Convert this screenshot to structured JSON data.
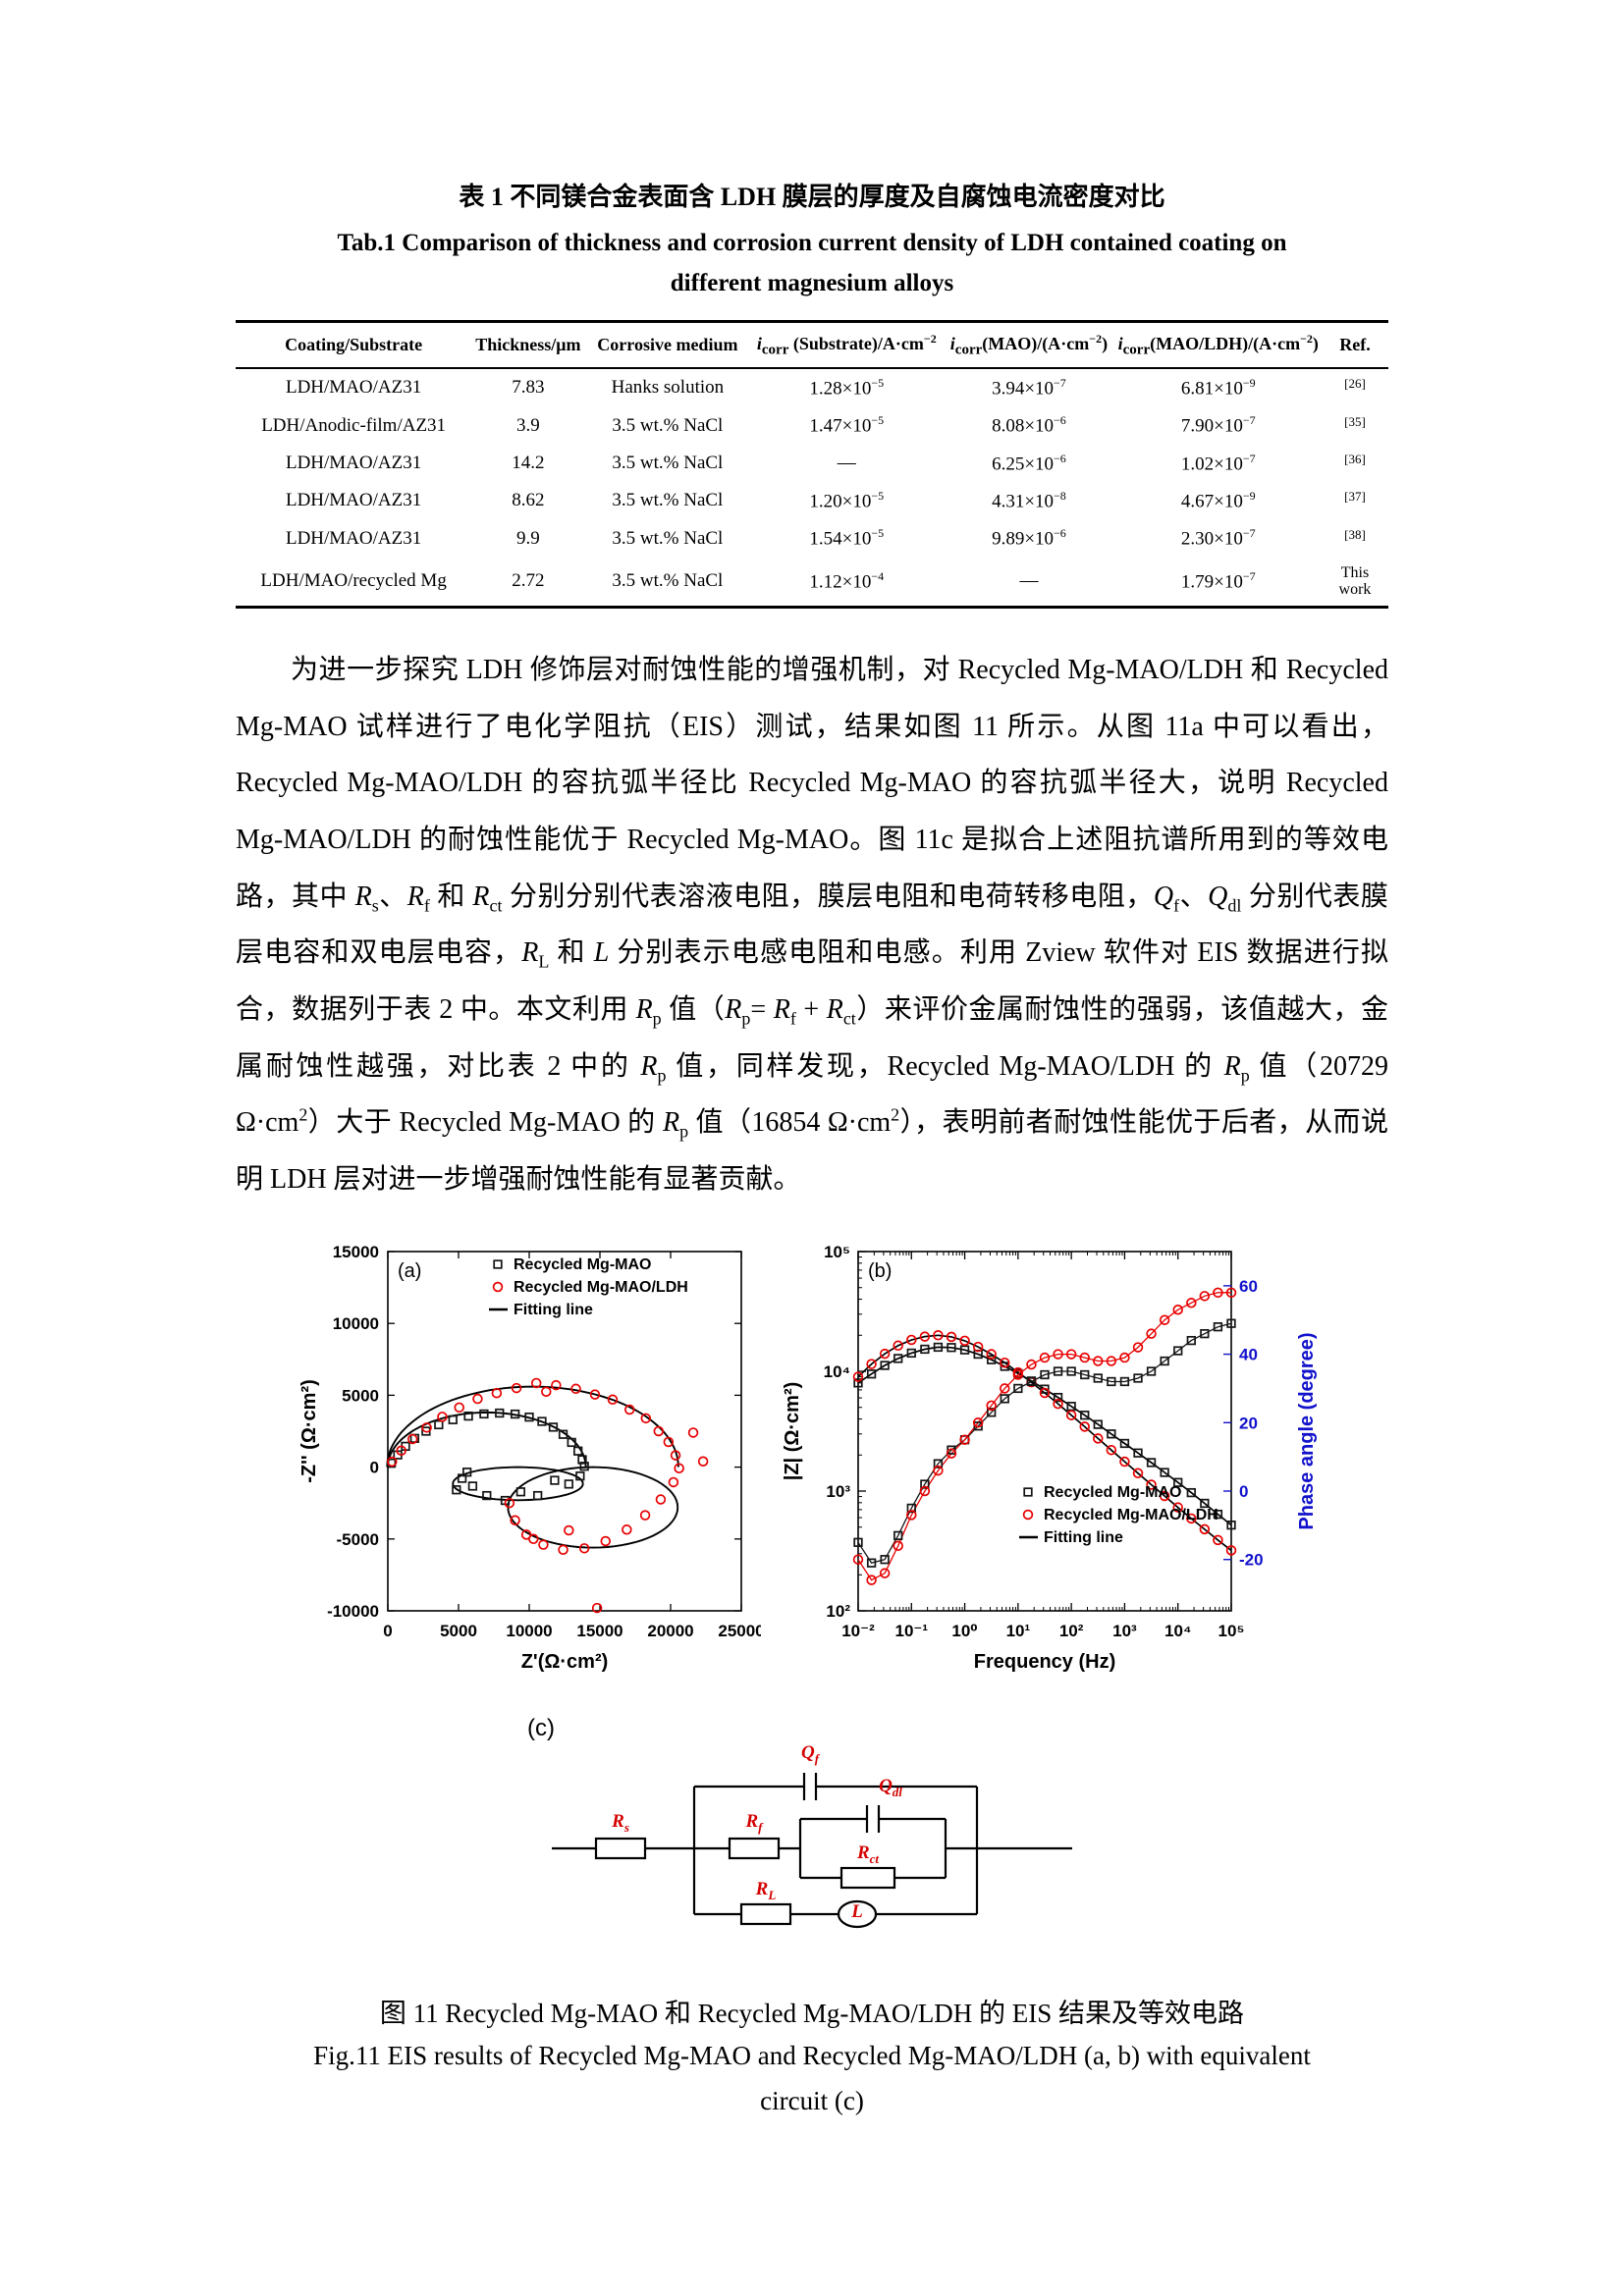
{
  "table_section": {
    "caption_cn": "表 1 不同镁合金表面含 LDH 膜层的厚度及自腐蚀电流密度对比",
    "caption_en_line1": "Tab.1 Comparison of  thickness and corrosion current density of LDH contained coating on",
    "caption_en_line2": "different magnesium alloys",
    "headers": [
      "Coating/Substrate",
      "Thickness/μm",
      "Corrosive medium",
      "<i>i</i><sub>corr</sub> (Substrate)/A·cm<sup>−2</sup>",
      "<i>i</i><sub>corr</sub>(MAO)/(A·cm<sup>−2</sup>)",
      "<i>i</i><sub>corr</sub>(MAO/LDH)/(A·cm<sup>−2</sup>)",
      "Ref."
    ],
    "rows": [
      [
        "LDH/MAO/AZ31",
        "7.83",
        "Hanks solution",
        "1.28×10<sup>−5</sup>",
        "3.94×10<sup>−7</sup>",
        "6.81×10<sup>−9</sup>",
        "<sup>[26]</sup>"
      ],
      [
        "LDH/Anodic-film/AZ31",
        "3.9",
        "3.5 wt.% NaCl",
        "1.47×10<sup>−5</sup>",
        "8.08×10<sup>−6</sup>",
        "7.90×10<sup>−7</sup>",
        "<sup>[35]</sup>"
      ],
      [
        "LDH/MAO/AZ31",
        "14.2",
        "3.5 wt.% NaCl",
        "—",
        "6.25×10<sup>−6</sup>",
        "1.02×10<sup>−7</sup>",
        "<sup>[36]</sup>"
      ],
      [
        "LDH/MAO/AZ31",
        "8.62",
        "3.5 wt.% NaCl",
        "1.20×10<sup>−5</sup>",
        "4.31×10<sup>−8</sup>",
        "4.67×10<sup>−9</sup>",
        "<sup>[37]</sup>"
      ],
      [
        "LDH/MAO/AZ31",
        "9.9",
        "3.5 wt.% NaCl",
        "1.54×10<sup>−5</sup>",
        "9.89×10<sup>−6</sup>",
        "2.30×10<sup>−7</sup>",
        "<sup>[38]</sup>"
      ],
      [
        "LDH/MAO/recycled Mg",
        "2.72",
        "3.5 wt.% NaCl",
        "1.12×10<sup>−4</sup>",
        "—",
        "1.79×10<sup>−7</sup>",
        "This work"
      ]
    ]
  },
  "paragraph_html": "为进一步探究 LDH 修饰层对耐蚀性能的增强机制，对 Recycled Mg-MAO/LDH 和 Recycled Mg-MAO 试样进行了电化学阻抗（EIS）测试，结果如图 11 所示。从图 11a 中可以看出，Recycled Mg-MAO/LDH 的容抗弧半径比 Recycled Mg-MAO 的容抗弧半径大，说明 Recycled Mg-MAO/LDH 的耐蚀性能优于 Recycled Mg-MAO。图 11c 是拟合上述阻抗谱所用到的等效电路，其中 <i>R</i><sub>s</sub>、<i>R</i><sub>f</sub> 和 <i>R</i><sub>ct</sub> 分别分别代表溶液电阻，膜层电阻和电荷转移电阻，<i>Q</i><sub>f</sub>、<i>Q</i><sub>dl</sub> 分别代表膜层电容和双电层电容，<i>R</i><sub>L</sub> 和 <i>L</i> 分别表示电感电阻和电感。利用 Zview 软件对 EIS 数据进行拟合，数据列于表 2 中。本文利用 <i>R</i><sub>p</sub> 值（<i>R</i><sub>p</sub>= <i>R</i><sub>f</sub> + <i>R</i><sub>ct</sub>）来评价金属耐蚀性的强弱，该值越大，金属耐蚀性越强，对比表 2 中的 <i>R</i><sub>p</sub> 值，同样发现，Recycled Mg-MAO/LDH 的 <i>R</i><sub>p</sub> 值（20729 Ω·cm<sup>2</sup>）大于 Recycled Mg-MAO 的 <i>R</i><sub>p</sub> 值（16854 Ω·cm<sup>2</sup>），表明前者耐蚀性能优于后者，从而说明 LDH 层对进一步增强耐蚀性能有显著贡献。",
  "chart_data": [
    {
      "type": "scatter",
      "panel": "(a)",
      "xlabel": "Z'(Ω·cm²)",
      "ylabel": "-Z'' (Ω·cm²)",
      "xlim": [
        0,
        25000
      ],
      "ylim": [
        -10000,
        15000
      ],
      "xticks": [
        0,
        5000,
        10000,
        15000,
        20000,
        25000
      ],
      "yticks": [
        -10000,
        -5000,
        0,
        5000,
        10000,
        15000
      ],
      "legend": [
        "Recycled Mg-MAO",
        "Recycled Mg-MAO/LDH",
        "Fitting line"
      ],
      "series": [
        {
          "name": "Recycled Mg-MAO",
          "marker": "square",
          "color": "#141414",
          "points": [
            [
              250,
              280
            ],
            [
              700,
              850
            ],
            [
              1250,
              1450
            ],
            [
              1900,
              2000
            ],
            [
              2700,
              2500
            ],
            [
              3600,
              2950
            ],
            [
              4600,
              3300
            ],
            [
              5700,
              3550
            ],
            [
              6800,
              3700
            ],
            [
              7900,
              3760
            ],
            [
              9000,
              3690
            ],
            [
              10000,
              3480
            ],
            [
              10900,
              3180
            ],
            [
              11700,
              2780
            ],
            [
              12400,
              2280
            ],
            [
              13000,
              1720
            ],
            [
              13450,
              1120
            ],
            [
              13750,
              520
            ],
            [
              13900,
              60
            ],
            [
              13600,
              -620
            ],
            [
              12800,
              -1180
            ],
            [
              11800,
              -920
            ],
            [
              10600,
              -1980
            ],
            [
              9400,
              -1720
            ],
            [
              8300,
              -2320
            ],
            [
              7000,
              -1980
            ],
            [
              6000,
              -1320
            ],
            [
              5250,
              -780
            ],
            [
              4850,
              -1580
            ],
            [
              5600,
              -350
            ]
          ]
        },
        {
          "name": "Recycled Mg-MAO/LDH",
          "marker": "circle",
          "color": "#e80000",
          "points": [
            [
              300,
              380
            ],
            [
              950,
              1150
            ],
            [
              1750,
              1950
            ],
            [
              2750,
              2750
            ],
            [
              3850,
              3500
            ],
            [
              5050,
              4150
            ],
            [
              6350,
              4750
            ],
            [
              7700,
              5150
            ],
            [
              9100,
              5500
            ],
            [
              10500,
              5850
            ],
            [
              11200,
              5250
            ],
            [
              11900,
              5700
            ],
            [
              13300,
              5450
            ],
            [
              14650,
              5050
            ],
            [
              15900,
              4700
            ],
            [
              17100,
              4000
            ],
            [
              18250,
              3400
            ],
            [
              19150,
              2500
            ],
            [
              19850,
              1750
            ],
            [
              20350,
              820
            ],
            [
              20600,
              -80
            ],
            [
              21600,
              2400
            ],
            [
              22300,
              400
            ],
            [
              20200,
              -1050
            ],
            [
              19300,
              -2250
            ],
            [
              18200,
              -3350
            ],
            [
              16900,
              -4350
            ],
            [
              15400,
              -5150
            ],
            [
              13900,
              -5650
            ],
            [
              12400,
              -5750
            ],
            [
              11000,
              -5400
            ],
            [
              9800,
              -4700
            ],
            [
              9000,
              -3700
            ],
            [
              8600,
              -2500
            ],
            [
              10300,
              -5000
            ],
            [
              12800,
              -4400
            ],
            [
              14800,
              -9800
            ]
          ]
        }
      ],
      "fit_lines": [
        {
          "cap": {
            "cx": 7000,
            "rx": 7000,
            "ry": 3800
          },
          "ind": {
            "cx": 9200,
            "cy": -1150,
            "rx": 4600,
            "ry": 1150
          }
        },
        {
          "cap": {
            "cx": 10250,
            "rx": 10300,
            "ry": 5600
          },
          "ind": {
            "cx": 14500,
            "cy": -2800,
            "rx": 6000,
            "ry": 2800
          }
        }
      ]
    },
    {
      "type": "line",
      "panel": "(b)",
      "xlabel": "Frequency (Hz)",
      "ylabel_left": "|Z| (Ω·cm²)",
      "ylabel_right": "Phase angle (degree)",
      "x_log_range": [
        -2,
        5
      ],
      "z_log_range": [
        2,
        5
      ],
      "phase_range": [
        -35,
        70
      ],
      "phase_ticks": [
        -20,
        0,
        20,
        40,
        60
      ],
      "xtick_labels": [
        "10⁻²",
        "10⁻¹",
        "10⁰",
        "10¹",
        "10²",
        "10³",
        "10⁴",
        "10⁵"
      ],
      "ztick_labels": [
        "10²",
        "10³",
        "10⁴",
        "10⁵"
      ],
      "right_axis_color": "#1212cc",
      "legend": [
        "Recycled Mg-MAO",
        "Recycled Mg-MAO/LDH",
        "Fitting line"
      ],
      "freqs": [
        0.01,
        0.0178,
        0.0316,
        0.0562,
        0.1,
        0.178,
        0.316,
        0.562,
        1,
        1.78,
        3.16,
        5.62,
        10,
        17.8,
        31.6,
        56.2,
        100,
        178,
        316,
        562,
        1000,
        1780,
        3160,
        5620,
        10000,
        17800,
        31600,
        56200,
        100000
      ],
      "series": [
        {
          "name": "Recycled Mg-MAO |Z|",
          "axis": "z",
          "marker": "square",
          "color": "#141414",
          "values": [
            8000,
            9500,
            11200,
            12800,
            14200,
            15300,
            15900,
            15800,
            15100,
            13900,
            12500,
            11000,
            9600,
            8300,
            7100,
            6050,
            5100,
            4300,
            3600,
            3000,
            2500,
            2080,
            1730,
            1430,
            1180,
            970,
            790,
            640,
            520
          ]
        },
        {
          "name": "Recycled Mg-MAO/LDH |Z|",
          "axis": "z",
          "marker": "circle",
          "color": "#e80000",
          "values": [
            9000,
            11500,
            14000,
            16400,
            18300,
            19500,
            20000,
            19400,
            18000,
            16000,
            13900,
            11800,
            9800,
            8100,
            6600,
            5350,
            4300,
            3450,
            2750,
            2200,
            1760,
            1410,
            1130,
            910,
            730,
            590,
            480,
            390,
            320
          ]
        },
        {
          "name": "Recycled Mg-MAO phase",
          "axis": "phase",
          "marker": "square",
          "color": "#141414",
          "values": [
            -15,
            -21,
            -20,
            -13,
            -5,
            2,
            8,
            12,
            15,
            19,
            23,
            27,
            30,
            32,
            34,
            35,
            35,
            34,
            33,
            32,
            32,
            33,
            35,
            38,
            41,
            44,
            46,
            48,
            49
          ]
        },
        {
          "name": "Recycled Mg-MAO/LDH phase",
          "axis": "phase",
          "marker": "circle",
          "color": "#e80000",
          "values": [
            -20,
            -26,
            -24,
            -16,
            -7,
            0,
            6,
            11,
            15,
            20,
            25,
            30,
            34,
            37,
            39,
            40,
            40,
            39,
            38,
            38,
            39,
            42,
            46,
            50,
            53,
            55,
            57,
            58,
            58
          ]
        }
      ]
    },
    {
      "type": "circuit",
      "panel": "(c)",
      "labels": {
        "rs": "<i>R</i><sub>s</sub>",
        "qf": "<i>Q</i><sub>f</sub>",
        "rf": "<i>R</i><sub>f</sub>",
        "qdl": "<i>Q</i><sub>dl</sub>",
        "rct": "<i>R</i><sub>ct</sub>",
        "rl": "<i>R</i><sub>L</sub>",
        "l": "<i>L</i>"
      }
    }
  ],
  "figure_captions": {
    "cn": "图 11 Recycled Mg-MAO 和 Recycled Mg-MAO/LDH 的 EIS 结果及等效电路",
    "en_line1": "Fig.11 EIS results of  Recycled Mg-MAO and Recycled Mg-MAO/LDH (a, b) with equivalent",
    "en_line2": "circuit (c)"
  }
}
